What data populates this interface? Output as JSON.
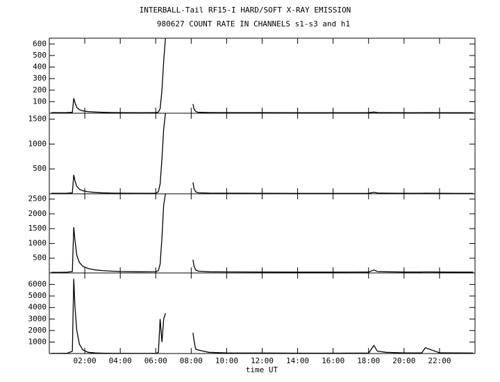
{
  "chart_data": [
    {
      "type": "line",
      "title": "INTERBALL-Tail RF15-I HARD/SOFT X-RAY EMISSION",
      "subtitle": "980627  COUNT RATE IN CHANNELS s1-s3 and h1",
      "x": [
        0.1,
        0.5,
        1.0,
        1.3,
        1.38,
        1.45,
        1.55,
        1.7,
        1.9,
        2.2,
        2.6,
        3.0,
        3.5,
        4.0,
        5.0,
        6.0,
        6.15,
        6.25,
        6.35,
        6.45,
        6.55,
        6.6,
        8.1,
        8.15,
        8.25,
        8.4,
        9.0,
        10.0,
        12.0,
        14.0,
        16.0,
        18.0,
        18.3,
        18.5,
        19.0,
        20.0,
        21.0,
        21.2,
        22.0,
        23.0,
        23.9
      ],
      "values": [
        5,
        5,
        6,
        8,
        130,
        90,
        50,
        30,
        20,
        14,
        10,
        8,
        6,
        5,
        4,
        5,
        10,
        40,
        200,
        450,
        650,
        null,
        80,
        40,
        15,
        8,
        6,
        5,
        5,
        4,
        4,
        5,
        10,
        6,
        5,
        4,
        4,
        5,
        4,
        4,
        4
      ],
      "color": "#000000",
      "xlim": [
        0,
        24
      ],
      "ylim": [
        0,
        650
      ],
      "yticks": [
        100,
        200,
        300,
        400,
        500,
        600
      ]
    },
    {
      "type": "line",
      "x": [
        0.1,
        0.5,
        1.0,
        1.3,
        1.38,
        1.45,
        1.55,
        1.7,
        1.9,
        2.2,
        2.6,
        3.0,
        3.5,
        4.0,
        5.0,
        6.0,
        6.15,
        6.25,
        6.35,
        6.45,
        6.55,
        6.6,
        8.1,
        8.15,
        8.25,
        8.4,
        9.0,
        10.0,
        12.0,
        14.0,
        16.0,
        18.0,
        18.3,
        18.5,
        19.0,
        20.0,
        21.0,
        21.2,
        22.0,
        23.0,
        23.9
      ],
      "values": [
        10,
        10,
        12,
        20,
        380,
        260,
        150,
        90,
        60,
        40,
        25,
        18,
        14,
        12,
        10,
        12,
        40,
        200,
        700,
        1300,
        1620,
        null,
        230,
        110,
        40,
        20,
        14,
        12,
        10,
        9,
        9,
        10,
        30,
        15,
        12,
        10,
        10,
        12,
        10,
        9,
        9
      ],
      "color": "#000000",
      "xlim": [
        0,
        24
      ],
      "ylim": [
        0,
        1620
      ],
      "yticks": [
        500,
        1000,
        1500
      ]
    },
    {
      "type": "line",
      "x": [
        0.1,
        0.5,
        1.0,
        1.3,
        1.38,
        1.45,
        1.55,
        1.7,
        1.9,
        2.2,
        2.6,
        3.0,
        3.5,
        4.0,
        5.0,
        6.0,
        6.15,
        6.25,
        6.35,
        6.45,
        6.55,
        6.6,
        8.1,
        8.15,
        8.25,
        8.4,
        9.0,
        10.0,
        12.0,
        14.0,
        16.0,
        18.0,
        18.3,
        18.5,
        19.0,
        20.0,
        21.0,
        21.2,
        22.0,
        23.0,
        23.9
      ],
      "values": [
        20,
        20,
        25,
        50,
        1550,
        1100,
        600,
        350,
        220,
        150,
        100,
        80,
        60,
        50,
        40,
        45,
        80,
        300,
        1200,
        2300,
        2680,
        null,
        450,
        250,
        100,
        60,
        40,
        35,
        30,
        28,
        28,
        30,
        100,
        50,
        40,
        30,
        30,
        35,
        30,
        28,
        28
      ],
      "color": "#000000",
      "xlim": [
        0,
        24
      ],
      "ylim": [
        0,
        2680
      ],
      "yticks": [
        500,
        1000,
        1500,
        2000,
        2500
      ]
    },
    {
      "type": "line",
      "xlabel": "time UT",
      "x": [
        0.1,
        0.5,
        1.0,
        1.3,
        1.38,
        1.45,
        1.55,
        1.7,
        1.9,
        2.2,
        2.6,
        3.0,
        3.5,
        4.0,
        5.0,
        6.0,
        6.15,
        6.25,
        6.35,
        6.45,
        6.55,
        6.6,
        8.1,
        8.15,
        8.25,
        8.4,
        9.0,
        10.0,
        12.0,
        14.0,
        16.0,
        18.0,
        18.3,
        18.5,
        19.0,
        20.0,
        21.0,
        21.2,
        22.0,
        23.0,
        23.9
      ],
      "values": [
        10,
        10,
        20,
        200,
        6500,
        4000,
        2000,
        800,
        300,
        100,
        50,
        30,
        20,
        15,
        10,
        15,
        100,
        3000,
        1000,
        3000,
        3500,
        null,
        1800,
        1200,
        400,
        300,
        100,
        50,
        40,
        30,
        30,
        40,
        700,
        200,
        100,
        50,
        60,
        500,
        60,
        50,
        40
      ],
      "color": "#000000",
      "xlim": [
        0,
        24
      ],
      "ylim": [
        0,
        7000
      ],
      "yticks": [
        1000,
        2000,
        3000,
        4000,
        5000,
        6000
      ],
      "xticks": [
        {
          "value": 2,
          "label": "02:00"
        },
        {
          "value": 4,
          "label": "04:00"
        },
        {
          "value": 6,
          "label": "06:00"
        },
        {
          "value": 8,
          "label": "08:00"
        },
        {
          "value": 10,
          "label": "10:00"
        },
        {
          "value": 12,
          "label": "12:00"
        },
        {
          "value": 14,
          "label": "14:00"
        },
        {
          "value": 16,
          "label": "16:00"
        },
        {
          "value": 18,
          "label": "18:00"
        },
        {
          "value": 20,
          "label": "20:00"
        },
        {
          "value": 22,
          "label": "22:00"
        }
      ]
    }
  ]
}
